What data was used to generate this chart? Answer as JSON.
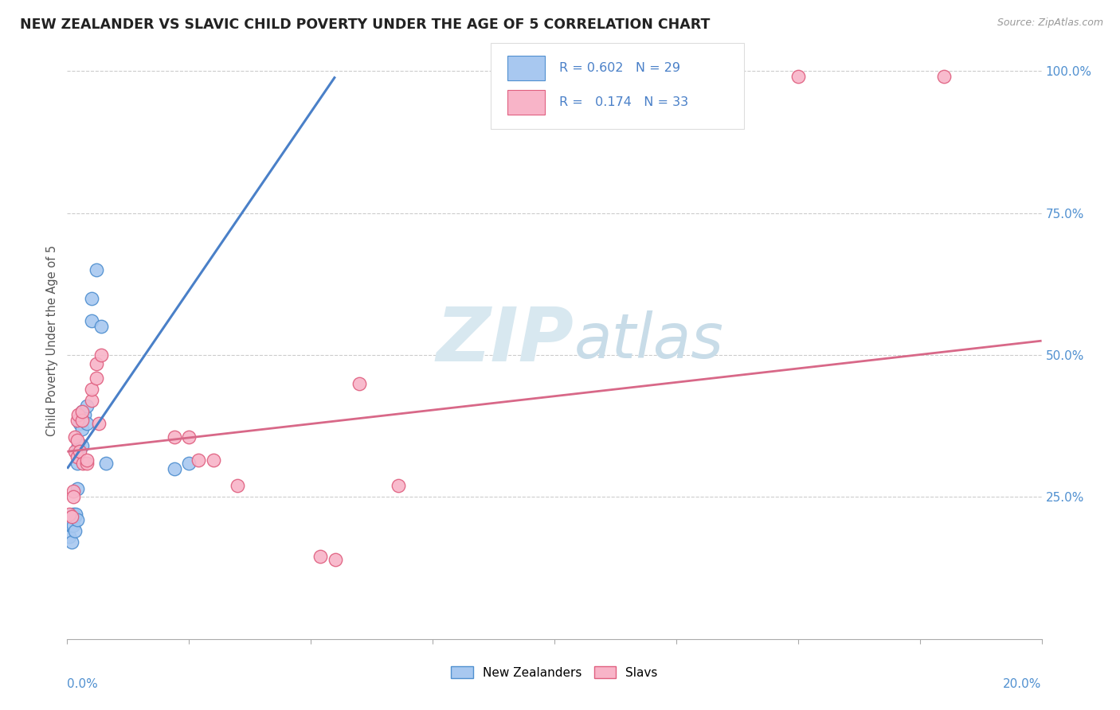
{
  "title": "NEW ZEALANDER VS SLAVIC CHILD POVERTY UNDER THE AGE OF 5 CORRELATION CHART",
  "source": "Source: ZipAtlas.com",
  "ylabel": "Child Poverty Under the Age of 5",
  "legend_label1": "New Zealanders",
  "legend_label2": "Slavs",
  "R1": "0.602",
  "N1": "29",
  "R2": "0.174",
  "N2": "33",
  "color1": "#a8c8f0",
  "color2": "#f8b4c8",
  "edge_color1": "#5090d0",
  "edge_color2": "#e06080",
  "line_color1": "#4a80c8",
  "line_color2": "#d86888",
  "right_tick_color": "#5090d0",
  "watermark_color": "#d8e8f0",
  "background_color": "#ffffff",
  "xlim": [
    0.0,
    0.2
  ],
  "ylim": [
    0.0,
    1.05
  ],
  "ytick_values": [
    0.25,
    0.5,
    0.75,
    1.0
  ],
  "ytick_labels": [
    "25.0%",
    "50.0%",
    "75.0%",
    "100.0%"
  ],
  "nz_x": [
    0.0005,
    0.0008,
    0.001,
    0.001,
    0.0012,
    0.0013,
    0.0015,
    0.0015,
    0.0018,
    0.002,
    0.002,
    0.002,
    0.0022,
    0.0025,
    0.003,
    0.003,
    0.003,
    0.0035,
    0.004,
    0.004,
    0.005,
    0.005,
    0.006,
    0.007,
    0.008,
    0.022,
    0.025,
    0.095,
    0.096
  ],
  "nz_y": [
    0.18,
    0.2,
    0.17,
    0.2,
    0.22,
    0.2,
    0.19,
    0.215,
    0.22,
    0.21,
    0.265,
    0.31,
    0.34,
    0.38,
    0.34,
    0.37,
    0.4,
    0.395,
    0.41,
    0.38,
    0.56,
    0.6,
    0.65,
    0.55,
    0.31,
    0.3,
    0.31,
    0.99,
    0.99
  ],
  "sl_x": [
    0.0005,
    0.001,
    0.0012,
    0.0013,
    0.0015,
    0.0016,
    0.002,
    0.002,
    0.002,
    0.0022,
    0.0025,
    0.003,
    0.003,
    0.0032,
    0.004,
    0.004,
    0.005,
    0.005,
    0.006,
    0.006,
    0.0065,
    0.007,
    0.022,
    0.025,
    0.027,
    0.03,
    0.035,
    0.052,
    0.055,
    0.06,
    0.068,
    0.15,
    0.18
  ],
  "sl_y": [
    0.22,
    0.215,
    0.26,
    0.25,
    0.33,
    0.355,
    0.35,
    0.385,
    0.32,
    0.395,
    0.33,
    0.385,
    0.4,
    0.31,
    0.31,
    0.315,
    0.42,
    0.44,
    0.46,
    0.485,
    0.38,
    0.5,
    0.355,
    0.355,
    0.315,
    0.315,
    0.27,
    0.145,
    0.14,
    0.45,
    0.27,
    0.99,
    0.99
  ],
  "nz_line_x": [
    0.0,
    0.055
  ],
  "nz_line_y": [
    0.3,
    0.99
  ],
  "sl_line_x": [
    0.0,
    0.2
  ],
  "sl_line_y": [
    0.33,
    0.525
  ]
}
